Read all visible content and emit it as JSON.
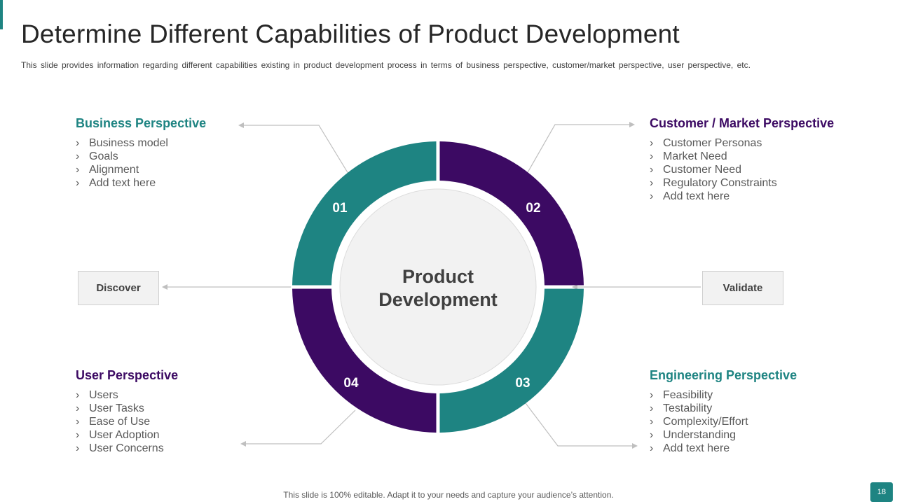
{
  "slide": {
    "title": "Determine Different Capabilities of Product Development",
    "subtitle": "This slide provides information regarding different capabilities existing in product development process in terms of business perspective, customer/market perspective, user perspective, etc.",
    "footer": "This slide is 100% editable. Adapt it to your needs and capture your audience’s attention.",
    "page_number": "18"
  },
  "center": {
    "line1": "Product",
    "line2": "Development"
  },
  "segments": [
    {
      "number": "01",
      "color": "#1e8482"
    },
    {
      "number": "02",
      "color": "#3c0a63"
    },
    {
      "number": "03",
      "color": "#1e8482"
    },
    {
      "number": "04",
      "color": "#3c0a63"
    }
  ],
  "sides": {
    "left": "Discover",
    "right": "Validate"
  },
  "sections": {
    "business": {
      "heading": "Business Perspective",
      "items": [
        "Business model",
        "Goals",
        "Alignment",
        "Add text here"
      ]
    },
    "customer": {
      "heading": "Customer / Market Perspective",
      "items": [
        "Customer Personas",
        "Market Need",
        "Customer Need",
        "Regulatory Constraints",
        "Add text here"
      ]
    },
    "user": {
      "heading": "User Perspective",
      "items": [
        "Users",
        "User Tasks",
        "Ease of Use",
        "User Adoption",
        "User Concerns"
      ]
    },
    "engineering": {
      "heading": "Engineering Perspective",
      "items": [
        "Feasibility",
        "Testability",
        "Complexity/Effort",
        "Understanding",
        "Add text here"
      ]
    }
  },
  "colors": {
    "teal": "#1e8482",
    "purple": "#3c0a63",
    "center_fill": "#f2f2f2",
    "connector": "#bfbfbf"
  }
}
